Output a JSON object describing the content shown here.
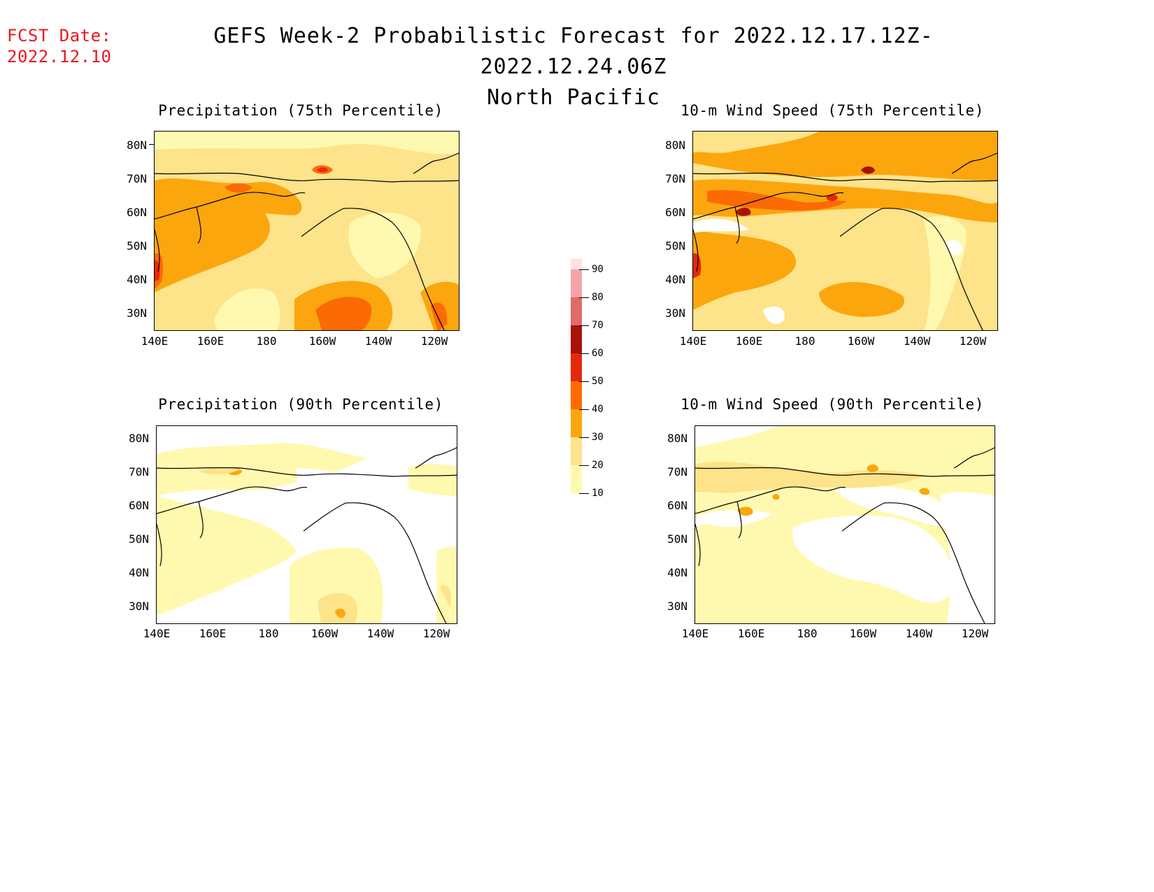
{
  "header": {
    "fcst_label": "FCST Date:",
    "fcst_date": "2022.12.10",
    "title_line1": "GEFS Week-2 Probabilistic Forecast for 2022.12.17.12Z-2022.12.24.06Z",
    "title_line2": "North Pacific"
  },
  "panels": [
    {
      "title": "Precipitation (75th Percentile)"
    },
    {
      "title": "10-m Wind Speed (75th Percentile)"
    },
    {
      "title": "Precipitation (90th Percentile)"
    },
    {
      "title": "10-m Wind Speed (90th Percentile)"
    }
  ],
  "axes": {
    "lat_labels": [
      "80N",
      "70N",
      "60N",
      "50N",
      "40N",
      "30N"
    ],
    "lon_labels": [
      "140E",
      "160E",
      "180",
      "160W",
      "140W",
      "120W"
    ]
  },
  "colorbar": {
    "levels": [
      "10",
      "20",
      "30",
      "40",
      "50",
      "60",
      "70",
      "80",
      "90"
    ],
    "colors": [
      "#fff9b0",
      "#fde38a",
      "#fca60e",
      "#fc6a04",
      "#e42a08",
      "#a8120a",
      "#de6a6a",
      "#f4a4a8",
      "#fde2e2"
    ]
  }
}
